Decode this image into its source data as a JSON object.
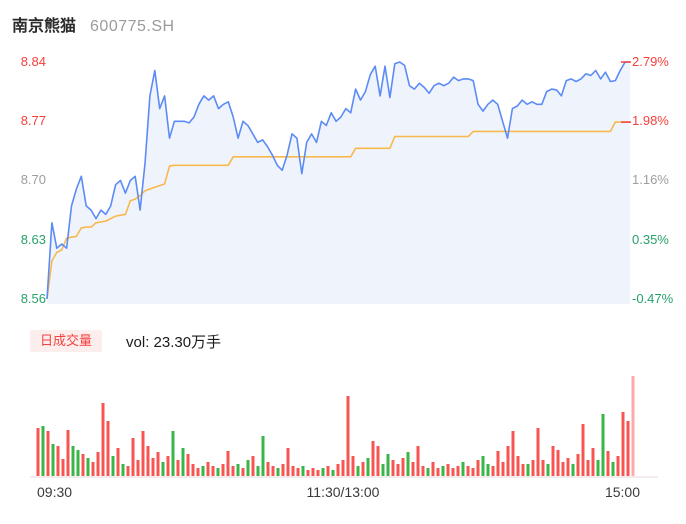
{
  "header": {
    "title": "南京熊猫",
    "code": "600775.SH"
  },
  "legend": {
    "volume_badge": "日成交量",
    "volume_text": "vol: 23.30万手"
  },
  "time_axis": {
    "open": "09:30",
    "midday": "11:30/13:00",
    "close": "15:00"
  },
  "price_axis_left": [
    {
      "label": "8.84",
      "tone": "up"
    },
    {
      "label": "8.77",
      "tone": "up"
    },
    {
      "label": "8.70",
      "tone": "flat"
    },
    {
      "label": "8.63",
      "tone": "down"
    },
    {
      "label": "8.56",
      "tone": "down"
    }
  ],
  "price_axis_right": [
    {
      "label": "2.79%",
      "tone": "up"
    },
    {
      "label": "1.98%",
      "tone": "up"
    },
    {
      "label": "1.16%",
      "tone": "flat"
    },
    {
      "label": "0.35%",
      "tone": "down"
    },
    {
      "label": "-0.47%",
      "tone": "down"
    }
  ],
  "colors": {
    "up": "#f5413d",
    "down": "#27a16a",
    "flat": "#9e9e9e",
    "price_line": "#5c8bf5",
    "price_fill": "#eff4fc",
    "avg_line": "#f8b84e",
    "vol_up": "#f75452",
    "vol_down": "#39b54a",
    "vol_last": "#fbabab",
    "baseline": "#e9d9d9",
    "leader_tick": "#f5413d"
  },
  "chart_data": {
    "type": "line",
    "title": "南京熊猫 600775.SH 分时走势",
    "x_range": [
      "09:30",
      "15:00"
    ],
    "price_ylim": [
      8.56,
      8.84
    ],
    "pct_ylim": [
      -0.47,
      2.79
    ],
    "prev_close": 8.6,
    "y_ticks_price": [
      8.56,
      8.63,
      8.7,
      8.77,
      8.84
    ],
    "y_ticks_pct": [
      "-0.47%",
      "0.35%",
      "1.16%",
      "1.98%",
      "2.79%"
    ],
    "grid": false,
    "legend_position": "below-price-pane",
    "series": [
      {
        "name": "price",
        "last_pct": "2.79%",
        "values": [
          8.56,
          8.65,
          8.62,
          8.625,
          8.62,
          8.67,
          8.69,
          8.705,
          8.67,
          8.665,
          8.655,
          8.665,
          8.66,
          8.67,
          8.695,
          8.7,
          8.685,
          8.7,
          8.705,
          8.665,
          8.72,
          8.8,
          8.83,
          8.785,
          8.8,
          8.75,
          8.77,
          8.77,
          8.77,
          8.768,
          8.775,
          8.79,
          8.8,
          8.795,
          8.8,
          8.785,
          8.79,
          8.793,
          8.775,
          8.75,
          8.77,
          8.765,
          8.755,
          8.745,
          8.748,
          8.74,
          8.73,
          8.718,
          8.712,
          8.73,
          8.755,
          8.75,
          8.708,
          8.745,
          8.755,
          8.745,
          8.77,
          8.765,
          8.78,
          8.77,
          8.775,
          8.785,
          8.78,
          8.808,
          8.795,
          8.805,
          8.825,
          8.835,
          8.8,
          8.835,
          8.798,
          8.838,
          8.84,
          8.836,
          8.812,
          8.808,
          8.815,
          8.81,
          8.803,
          8.812,
          8.815,
          8.812,
          8.815,
          8.822,
          8.818,
          8.82,
          8.82,
          8.818,
          8.79,
          8.782,
          8.79,
          8.795,
          8.79,
          8.77,
          8.75,
          8.785,
          8.788,
          8.795,
          8.79,
          8.793,
          8.79,
          8.79,
          8.805,
          8.808,
          8.807,
          8.8,
          8.818,
          8.82,
          8.817,
          8.82,
          8.826,
          8.824,
          8.83,
          8.82,
          8.828,
          8.817,
          8.818,
          8.83,
          8.84,
          8.84
        ]
      },
      {
        "name": "avg_price",
        "last_pct": "1.98%",
        "values": [
          8.56,
          8.605,
          8.615,
          8.618,
          8.632,
          8.633,
          8.634,
          8.644,
          8.645,
          8.645,
          8.65,
          8.651,
          8.652,
          8.655,
          8.658,
          8.659,
          8.66,
          8.676,
          8.678,
          8.682,
          8.688,
          8.69,
          8.692,
          8.694,
          8.696,
          8.717,
          8.718,
          8.718,
          8.718,
          8.718,
          8.718,
          8.718,
          8.718,
          8.718,
          8.718,
          8.718,
          8.718,
          8.718,
          8.728,
          8.728,
          8.728,
          8.728,
          8.728,
          8.728,
          8.728,
          8.728,
          8.728,
          8.728,
          8.728,
          8.728,
          8.728,
          8.728,
          8.728,
          8.728,
          8.728,
          8.728,
          8.728,
          8.728,
          8.728,
          8.728,
          8.728,
          8.728,
          8.728,
          8.738,
          8.738,
          8.738,
          8.738,
          8.738,
          8.738,
          8.738,
          8.738,
          8.752,
          8.752,
          8.752,
          8.752,
          8.752,
          8.752,
          8.752,
          8.752,
          8.752,
          8.752,
          8.752,
          8.752,
          8.752,
          8.752,
          8.752,
          8.752,
          8.758,
          8.758,
          8.758,
          8.758,
          8.758,
          8.758,
          8.758,
          8.758,
          8.758,
          8.758,
          8.758,
          8.758,
          8.758,
          8.758,
          8.758,
          8.758,
          8.758,
          8.758,
          8.758,
          8.758,
          8.758,
          8.758,
          8.758,
          8.758,
          8.758,
          8.758,
          8.758,
          8.758,
          8.758,
          8.769,
          8.769,
          8.769,
          8.769
        ]
      }
    ],
    "volume": {
      "name": "日成交量",
      "total": "23.30万手",
      "bars": [
        [
          48,
          "r"
        ],
        [
          50,
          "g"
        ],
        [
          45,
          "r"
        ],
        [
          32,
          "g"
        ],
        [
          30,
          "r"
        ],
        [
          17,
          "r"
        ],
        [
          46,
          "r"
        ],
        [
          30,
          "g"
        ],
        [
          26,
          "g"
        ],
        [
          22,
          "r"
        ],
        [
          18,
          "g"
        ],
        [
          14,
          "r"
        ],
        [
          24,
          "r"
        ],
        [
          73,
          "r"
        ],
        [
          55,
          "r"
        ],
        [
          20,
          "g"
        ],
        [
          28,
          "r"
        ],
        [
          12,
          "g"
        ],
        [
          10,
          "r"
        ],
        [
          38,
          "r"
        ],
        [
          16,
          "r"
        ],
        [
          45,
          "r"
        ],
        [
          30,
          "r"
        ],
        [
          18,
          "r"
        ],
        [
          24,
          "r"
        ],
        [
          14,
          "g"
        ],
        [
          20,
          "r"
        ],
        [
          45,
          "g"
        ],
        [
          16,
          "r"
        ],
        [
          28,
          "g"
        ],
        [
          22,
          "r"
        ],
        [
          12,
          "r"
        ],
        [
          8,
          "r"
        ],
        [
          10,
          "g"
        ],
        [
          14,
          "r"
        ],
        [
          10,
          "r"
        ],
        [
          8,
          "g"
        ],
        [
          12,
          "r"
        ],
        [
          25,
          "r"
        ],
        [
          10,
          "r"
        ],
        [
          12,
          "g"
        ],
        [
          8,
          "r"
        ],
        [
          16,
          "g"
        ],
        [
          20,
          "r"
        ],
        [
          10,
          "g"
        ],
        [
          40,
          "g"
        ],
        [
          14,
          "r"
        ],
        [
          10,
          "r"
        ],
        [
          8,
          "g"
        ],
        [
          12,
          "r"
        ],
        [
          28,
          "r"
        ],
        [
          10,
          "r"
        ],
        [
          8,
          "r"
        ],
        [
          10,
          "g"
        ],
        [
          6,
          "r"
        ],
        [
          8,
          "r"
        ],
        [
          6,
          "r"
        ],
        [
          8,
          "g"
        ],
        [
          10,
          "r"
        ],
        [
          6,
          "g"
        ],
        [
          12,
          "r"
        ],
        [
          16,
          "r"
        ],
        [
          80,
          "r"
        ],
        [
          20,
          "r"
        ],
        [
          10,
          "g"
        ],
        [
          14,
          "r"
        ],
        [
          18,
          "g"
        ],
        [
          35,
          "r"
        ],
        [
          30,
          "r"
        ],
        [
          12,
          "g"
        ],
        [
          22,
          "g"
        ],
        [
          16,
          "r"
        ],
        [
          12,
          "r"
        ],
        [
          18,
          "r"
        ],
        [
          24,
          "g"
        ],
        [
          14,
          "r"
        ],
        [
          30,
          "r"
        ],
        [
          10,
          "r"
        ],
        [
          8,
          "g"
        ],
        [
          14,
          "r"
        ],
        [
          8,
          "r"
        ],
        [
          10,
          "g"
        ],
        [
          12,
          "r"
        ],
        [
          8,
          "r"
        ],
        [
          10,
          "r"
        ],
        [
          14,
          "g"
        ],
        [
          10,
          "r"
        ],
        [
          8,
          "r"
        ],
        [
          16,
          "r"
        ],
        [
          20,
          "g"
        ],
        [
          12,
          "g"
        ],
        [
          10,
          "r"
        ],
        [
          25,
          "r"
        ],
        [
          14,
          "r"
        ],
        [
          30,
          "r"
        ],
        [
          45,
          "r"
        ],
        [
          20,
          "r"
        ],
        [
          12,
          "r"
        ],
        [
          12,
          "g"
        ],
        [
          16,
          "r"
        ],
        [
          48,
          "r"
        ],
        [
          16,
          "r"
        ],
        [
          12,
          "g"
        ],
        [
          30,
          "r"
        ],
        [
          26,
          "r"
        ],
        [
          14,
          "r"
        ],
        [
          18,
          "r"
        ],
        [
          12,
          "g"
        ],
        [
          22,
          "r"
        ],
        [
          52,
          "r"
        ],
        [
          16,
          "r"
        ],
        [
          28,
          "r"
        ],
        [
          16,
          "g"
        ],
        [
          62,
          "g"
        ],
        [
          25,
          "r"
        ],
        [
          14,
          "g"
        ],
        [
          20,
          "r"
        ],
        [
          64,
          "r"
        ],
        [
          55,
          "r"
        ],
        [
          100,
          "p"
        ]
      ]
    }
  },
  "layout_note": "intraday price pane with avg-price line above volume bar pane"
}
